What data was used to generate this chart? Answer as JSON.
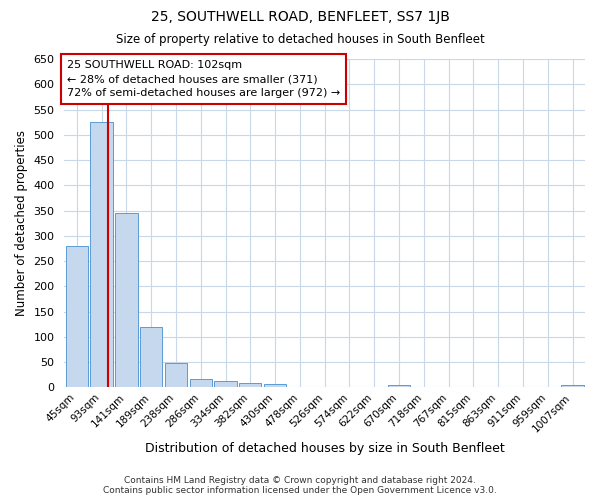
{
  "title": "25, SOUTHWELL ROAD, BENFLEET, SS7 1JB",
  "subtitle": "Size of property relative to detached houses in South Benfleet",
  "xlabel": "Distribution of detached houses by size in South Benfleet",
  "ylabel": "Number of detached properties",
  "footer_line1": "Contains HM Land Registry data © Crown copyright and database right 2024.",
  "footer_line2": "Contains public sector information licensed under the Open Government Licence v3.0.",
  "categories": [
    "45sqm",
    "93sqm",
    "141sqm",
    "189sqm",
    "238sqm",
    "286sqm",
    "334sqm",
    "382sqm",
    "430sqm",
    "478sqm",
    "526sqm",
    "574sqm",
    "622sqm",
    "670sqm",
    "718sqm",
    "767sqm",
    "815sqm",
    "863sqm",
    "911sqm",
    "959sqm",
    "1007sqm"
  ],
  "values": [
    280,
    525,
    345,
    120,
    48,
    17,
    12,
    9,
    6,
    0,
    0,
    0,
    0,
    5,
    0,
    0,
    0,
    0,
    0,
    0,
    5
  ],
  "bar_color": "#c5d8ed",
  "bar_edge_color": "#5b9bd5",
  "ylim": [
    0,
    650
  ],
  "yticks": [
    0,
    50,
    100,
    150,
    200,
    250,
    300,
    350,
    400,
    450,
    500,
    550,
    600,
    650
  ],
  "property_line_x": 1.25,
  "annotation_text_line1": "25 SOUTHWELL ROAD: 102sqm",
  "annotation_text_line2": "← 28% of detached houses are smaller (371)",
  "annotation_text_line3": "72% of semi-detached houses are larger (972) →",
  "red_line_color": "#cc0000",
  "background_color": "#ffffff",
  "grid_color": "#c8d8e8"
}
